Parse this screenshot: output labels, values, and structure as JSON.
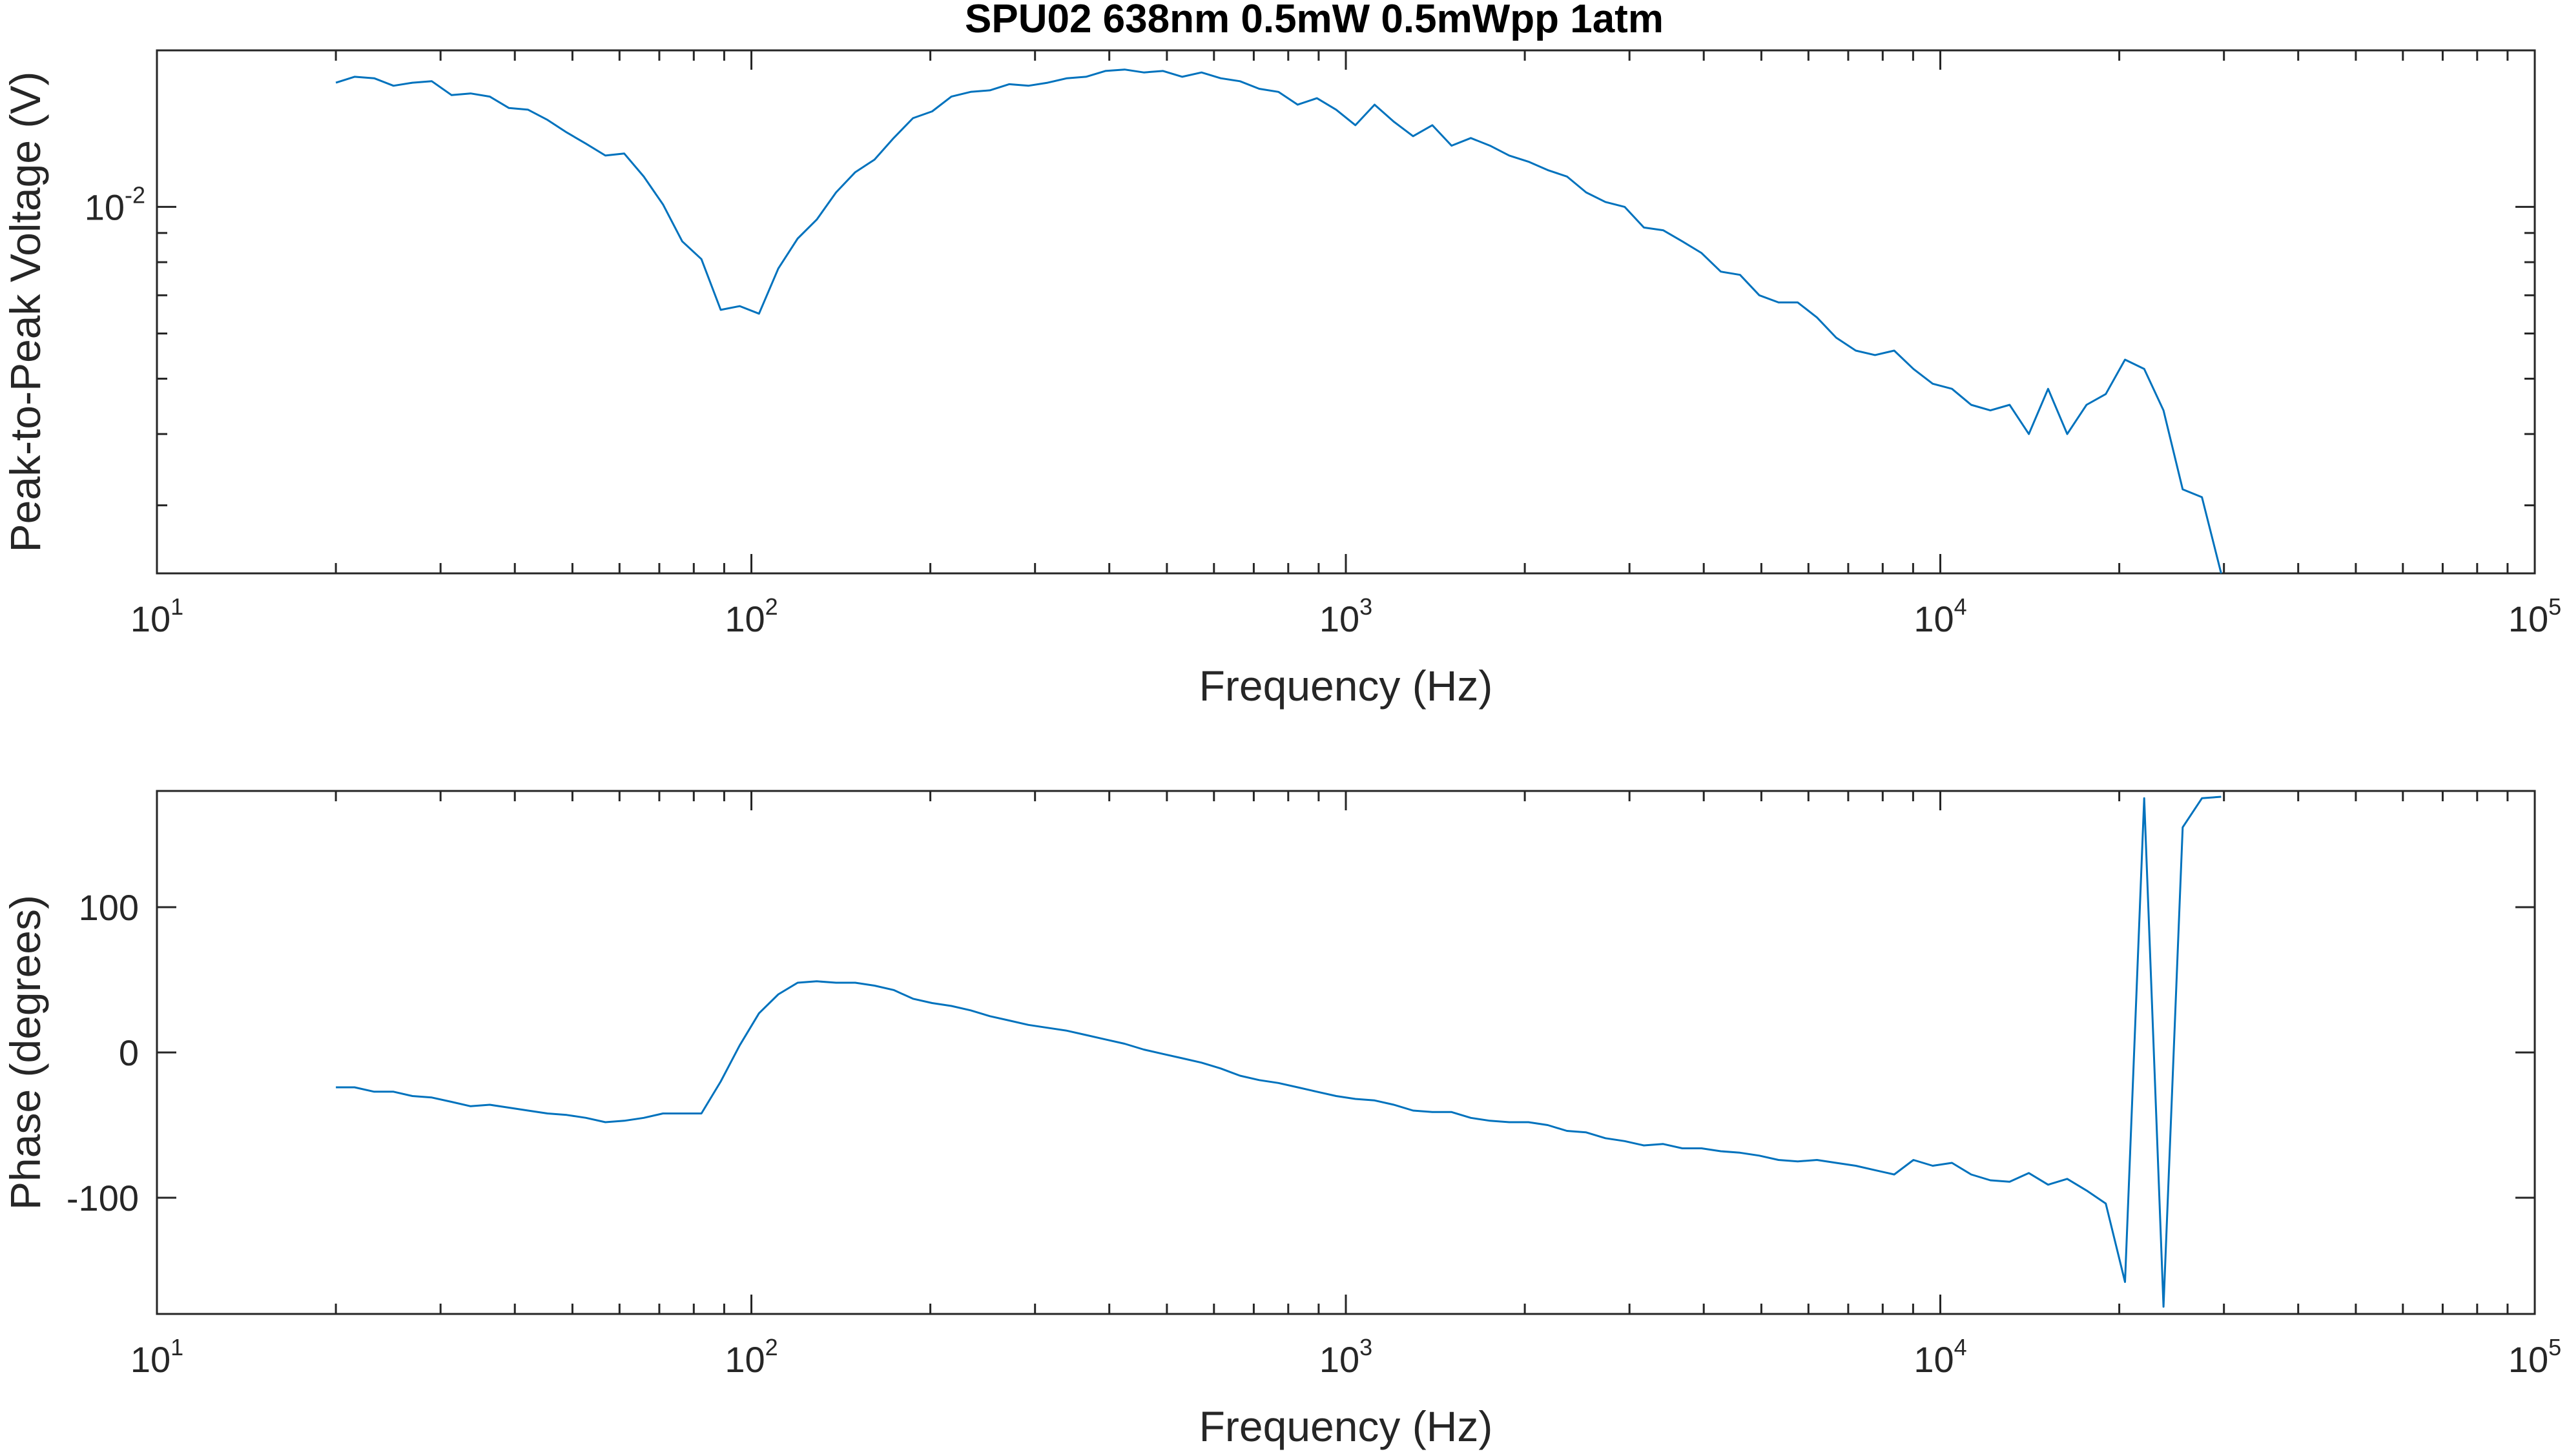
{
  "chart_data": [
    {
      "type": "line",
      "title": "SPU02 638nm 0.5mW 0.5mWpp 1atm",
      "xlabel": "Frequency (Hz)",
      "ylabel": "Peak-to-Peak Voltage (V)",
      "xscale": "log",
      "yscale": "log",
      "xlim": [
        10,
        100000
      ],
      "ylim": [
        0.00228,
        0.0188
      ],
      "x_ticks": [
        {
          "base": "10",
          "exp": "1"
        },
        {
          "base": "10",
          "exp": "2"
        },
        {
          "base": "10",
          "exp": "3"
        },
        {
          "base": "10",
          "exp": "4"
        },
        {
          "base": "10",
          "exp": "5"
        }
      ],
      "y_ticks": [
        {
          "base": "10",
          "exp": "-2",
          "value": 0.01
        }
      ],
      "y_minor_ticks": [
        0.003,
        0.004,
        0.005,
        0.006,
        0.007,
        0.008,
        0.009
      ],
      "color": "#0072BD",
      "x": [
        20,
        21.5,
        23.2,
        25,
        26.9,
        29,
        31.3,
        33.7,
        36.3,
        39.1,
        42.1,
        45.4,
        48.9,
        52.7,
        56.8,
        61.1,
        65.9,
        71,
        76.5,
        82.4,
        88.8,
        95.6,
        103,
        111,
        119.6,
        128.8,
        138.8,
        149.5,
        161.1,
        173.5,
        187,
        201.4,
        217,
        233.8,
        251.9,
        271.4,
        292.4,
        315,
        339.4,
        365.6,
        393.9,
        424.4,
        457.2,
        492.6,
        530.7,
        571.7,
        615.9,
        663.6,
        714.9,
        770.2,
        829.8,
        894,
        963.1,
        1037.6,
        1117.8,
        1204.3,
        1297.5,
        1397.8,
        1505.9,
        1622.4,
        1747.9,
        1883.1,
        2028.7,
        2185.6,
        2354.7,
        2536.8,
        2733,
        2944.4,
        3172.1,
        3417.4,
        3681.7,
        3966.5,
        4273.3,
        4603.8,
        4959.9,
        5343.5,
        5756.8,
        6202,
        6681.7,
        7208,
        7765,
        8365,
        9012,
        9709,
        10460,
        11270,
        12140,
        13080,
        14090,
        15180,
        16350,
        17620,
        18980,
        20450,
        22030,
        23740,
        25570,
        27550,
        29680
      ],
      "y": [
        0.0165,
        0.0169,
        0.0168,
        0.0163,
        0.0165,
        0.0166,
        0.0157,
        0.0158,
        0.0156,
        0.0149,
        0.0148,
        0.0142,
        0.0135,
        0.0129,
        0.0123,
        0.0124,
        0.0113,
        0.0101,
        0.0087,
        0.0081,
        0.0066,
        0.0067,
        0.0065,
        0.0078,
        0.0088,
        0.0095,
        0.0106,
        0.0115,
        0.0121,
        0.0132,
        0.0143,
        0.0147,
        0.0156,
        0.0159,
        0.016,
        0.0164,
        0.0163,
        0.0165,
        0.0168,
        0.0169,
        0.0173,
        0.0174,
        0.0172,
        0.0173,
        0.0169,
        0.0172,
        0.0168,
        0.0166,
        0.0161,
        0.0159,
        0.0151,
        0.0155,
        0.0148,
        0.0139,
        0.0151,
        0.0141,
        0.0133,
        0.0139,
        0.0128,
        0.0132,
        0.0128,
        0.0123,
        0.012,
        0.0116,
        0.0113,
        0.0106,
        0.0102,
        0.01,
        0.0092,
        0.0091,
        0.0087,
        0.0083,
        0.0077,
        0.0076,
        0.007,
        0.0068,
        0.0068,
        0.0064,
        0.0059,
        0.0056,
        0.0055,
        0.0056,
        0.0052,
        0.0049,
        0.0048,
        0.0045,
        0.0044,
        0.0045,
        0.004,
        0.0048,
        0.004,
        0.0045,
        0.0047,
        0.0054,
        0.0052,
        0.0044,
        0.0032,
        0.0031,
        0.00228
      ]
    },
    {
      "type": "line",
      "title": "",
      "xlabel": "Frequency (Hz)",
      "ylabel": "Phase (degrees)",
      "xscale": "log",
      "yscale": "linear",
      "xlim": [
        10,
        100000
      ],
      "ylim": [
        -180,
        180
      ],
      "x_ticks": [
        {
          "base": "10",
          "exp": "1"
        },
        {
          "base": "10",
          "exp": "2"
        },
        {
          "base": "10",
          "exp": "3"
        },
        {
          "base": "10",
          "exp": "4"
        },
        {
          "base": "10",
          "exp": "5"
        }
      ],
      "y_ticks": [
        {
          "label": "100",
          "value": 100
        },
        {
          "label": "0",
          "value": 0
        },
        {
          "label": "-100",
          "value": -100
        }
      ],
      "color": "#0072BD",
      "x": [
        20,
        21.5,
        23.2,
        25,
        26.9,
        29,
        31.3,
        33.7,
        36.3,
        39.1,
        42.1,
        45.4,
        48.9,
        52.7,
        56.8,
        61.1,
        65.9,
        71,
        76.5,
        82.4,
        88.8,
        95.6,
        103,
        111,
        119.6,
        128.8,
        138.8,
        149.5,
        161.1,
        173.5,
        187,
        201.4,
        217,
        233.8,
        251.9,
        271.4,
        292.4,
        315,
        339.4,
        365.6,
        393.9,
        424.4,
        457.2,
        492.6,
        530.7,
        571.7,
        615.9,
        663.6,
        714.9,
        770.2,
        829.8,
        894,
        963.1,
        1037.6,
        1117.8,
        1204.3,
        1297.5,
        1397.8,
        1505.9,
        1622.4,
        1747.9,
        1883.1,
        2028.7,
        2185.6,
        2354.7,
        2536.8,
        2733,
        2944.4,
        3172.1,
        3417.4,
        3681.7,
        3966.5,
        4273.3,
        4603.8,
        4959.9,
        5343.5,
        5756.8,
        6202,
        6681.7,
        7208,
        7765,
        8365,
        9012,
        9709,
        10460,
        11270,
        12140,
        13080,
        14090,
        15180,
        16350,
        17620,
        18980,
        20450,
        22030,
        23740,
        25570,
        27550,
        29680
      ],
      "y": [
        -24,
        -24,
        -27,
        -27,
        -30,
        -31,
        -34,
        -37,
        -36,
        -38,
        -40,
        -42,
        -43,
        -45,
        -48,
        -47,
        -45,
        -42,
        -42,
        -42,
        -20,
        5,
        27,
        40,
        48,
        49,
        48,
        48,
        46,
        43,
        37,
        34,
        32,
        29,
        25,
        22,
        19,
        17,
        15,
        12,
        9,
        6,
        2,
        -1,
        -4,
        -7,
        -11,
        -16,
        -19,
        -21,
        -24,
        -27,
        -30,
        -32,
        -33,
        -36,
        -40,
        -41,
        -41,
        -45,
        -47,
        -48,
        -48,
        -50,
        -54,
        -55,
        -59,
        -61,
        -64,
        -63,
        -66,
        -66,
        -68,
        -69,
        -71,
        -74,
        -75,
        -74,
        -76,
        -78,
        -81,
        -84,
        -74,
        -78,
        -76,
        -84,
        -88,
        -89,
        -83,
        -91,
        -87,
        -95,
        -104,
        -158,
        175,
        -175,
        155,
        175,
        176
      ]
    }
  ]
}
